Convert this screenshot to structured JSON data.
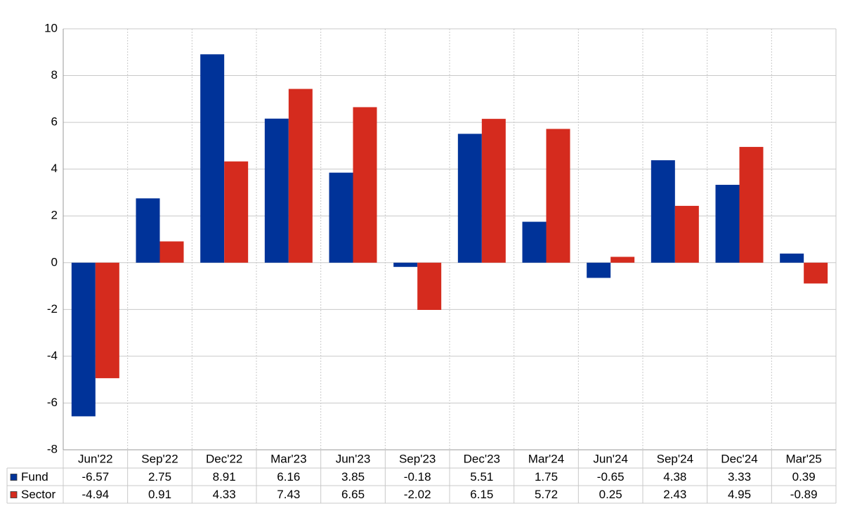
{
  "chart_data": {
    "type": "bar",
    "categories": [
      "Jun'22",
      "Sep'22",
      "Dec'22",
      "Mar'23",
      "Jun'23",
      "Sep'23",
      "Dec'23",
      "Mar'24",
      "Jun'24",
      "Sep'24",
      "Dec'24",
      "Mar'25"
    ],
    "series": [
      {
        "name": "Fund",
        "color": "#003399",
        "values": [
          -6.57,
          2.75,
          8.91,
          6.16,
          3.85,
          -0.18,
          5.51,
          1.75,
          -0.65,
          4.38,
          3.33,
          0.39
        ]
      },
      {
        "name": "Sector",
        "color": "#d52b1e",
        "values": [
          -4.94,
          0.91,
          4.33,
          7.43,
          6.65,
          -2.02,
          6.15,
          5.72,
          0.25,
          2.43,
          4.95,
          -0.89
        ]
      }
    ],
    "ylim": [
      -8,
      10
    ],
    "yticks": [
      -8,
      -6,
      -4,
      -2,
      0,
      2,
      4,
      6,
      8,
      10
    ],
    "grid": true
  }
}
